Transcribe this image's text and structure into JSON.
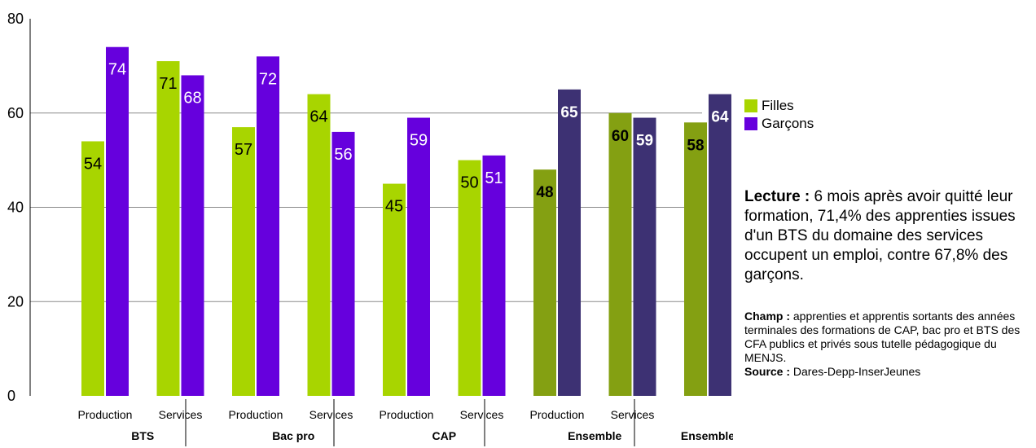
{
  "chart_data": {
    "type": "bar",
    "ylim": [
      0,
      80
    ],
    "yticks": [
      0,
      20,
      40,
      60,
      80
    ],
    "grid": true,
    "legend_position": "right",
    "series": [
      {
        "name": "Filles",
        "values": [
          54,
          71,
          57,
          64,
          45,
          50,
          48,
          60,
          58
        ]
      },
      {
        "name": "Garçons",
        "values": [
          74,
          68,
          72,
          56,
          59,
          51,
          65,
          59,
          64
        ]
      }
    ],
    "categories": [
      "Production",
      "Services",
      "Production",
      "Services",
      "Production",
      "Services",
      "Production",
      "Services",
      ""
    ],
    "groups": [
      {
        "label": "BTS",
        "span": [
          0,
          1
        ]
      },
      {
        "label": "Bac pro",
        "span": [
          2,
          3
        ]
      },
      {
        "label": "CAP",
        "span": [
          4,
          5
        ]
      },
      {
        "label": "Ensemble",
        "span": [
          6,
          7
        ]
      },
      {
        "label": "Ensemble",
        "span": [
          8,
          8
        ]
      }
    ],
    "bar_labels": [
      [
        "54",
        "74"
      ],
      [
        "71",
        "68"
      ],
      [
        "57",
        "72"
      ],
      [
        "64",
        "56"
      ],
      [
        "45",
        "59"
      ],
      [
        "50",
        "51"
      ],
      [
        "48",
        "65"
      ],
      [
        "60",
        "59"
      ],
      [
        "58",
        "64"
      ]
    ],
    "colors": {
      "filles": "#a8d500",
      "garcons": "#6600dd",
      "filles_total": "#84a012",
      "garcons_total": "#3d3173"
    }
  },
  "legend": {
    "filles": "Filles",
    "garcons": "Garçons"
  },
  "reading": {
    "label": "Lecture :",
    "text": " 6 mois après avoir quitté leur formation, 71,4% des apprenties issues d'un BTS du domaine des services occupent un emploi, contre 67,8% des garçons."
  },
  "notes": {
    "champ_label": "Champ :",
    "champ_text": " apprenties et apprentis sortants des années terminales des formations de CAP, bac pro et BTS des CFA publics et privés sous tutelle pédagogique du MENJS.",
    "source_label": "Source :",
    "source_text": " Dares-Depp-InserJeunes"
  }
}
